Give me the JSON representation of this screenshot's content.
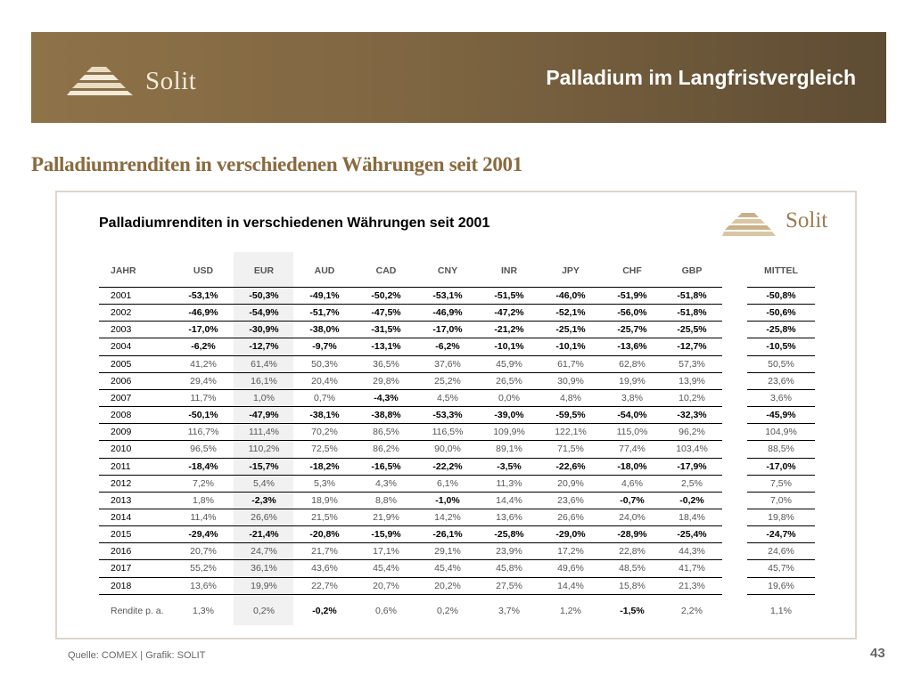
{
  "header": {
    "logo_text": "Solit",
    "title": "Palladium im Langfristvergleich"
  },
  "subtitle": "Palladiumrenditen in verschiedenen Währungen seit 2001",
  "table": {
    "title": "Palladiumrenditen in verschiedenen Währungen seit 2001",
    "logo_text": "Solit",
    "columns": [
      "JAHR",
      "USD",
      "EUR",
      "AUD",
      "CAD",
      "CNY",
      "INR",
      "JPY",
      "CHF",
      "GBP",
      "MITTEL"
    ],
    "rows": [
      [
        "2001",
        "-53,1%",
        "-50,3%",
        "-49,1%",
        "-50,2%",
        "-53,1%",
        "-51,5%",
        "-46,0%",
        "-51,9%",
        "-51,8%",
        "-50,8%"
      ],
      [
        "2002",
        "-46,9%",
        "-54,9%",
        "-51,7%",
        "-47,5%",
        "-46,9%",
        "-47,2%",
        "-52,1%",
        "-56,0%",
        "-51,8%",
        "-50,6%"
      ],
      [
        "2003",
        "-17,0%",
        "-30,9%",
        "-38,0%",
        "-31,5%",
        "-17,0%",
        "-21,2%",
        "-25,1%",
        "-25,7%",
        "-25,5%",
        "-25,8%"
      ],
      [
        "2004",
        "-6,2%",
        "-12,7%",
        "-9,7%",
        "-13,1%",
        "-6,2%",
        "-10,1%",
        "-10,1%",
        "-13,6%",
        "-12,7%",
        "-10,5%"
      ],
      [
        "2005",
        "41,2%",
        "61,4%",
        "50,3%",
        "36,5%",
        "37,6%",
        "45,9%",
        "61,7%",
        "62,8%",
        "57,3%",
        "50,5%"
      ],
      [
        "2006",
        "29,4%",
        "16,1%",
        "20,4%",
        "29,8%",
        "25,2%",
        "26,5%",
        "30,9%",
        "19,9%",
        "13,9%",
        "23,6%"
      ],
      [
        "2007",
        "11,7%",
        "1,0%",
        "0,7%",
        "-4,3%",
        "4,5%",
        "0,0%",
        "4,8%",
        "3,8%",
        "10,2%",
        "3,6%"
      ],
      [
        "2008",
        "-50,1%",
        "-47,9%",
        "-38,1%",
        "-38,8%",
        "-53,3%",
        "-39,0%",
        "-59,5%",
        "-54,0%",
        "-32,3%",
        "-45,9%"
      ],
      [
        "2009",
        "116,7%",
        "111,4%",
        "70,2%",
        "86,5%",
        "116,5%",
        "109,9%",
        "122,1%",
        "115,0%",
        "96,2%",
        "104,9%"
      ],
      [
        "2010",
        "96,5%",
        "110,2%",
        "72,5%",
        "86,2%",
        "90,0%",
        "89,1%",
        "71,5%",
        "77,4%",
        "103,4%",
        "88,5%"
      ],
      [
        "2011",
        "-18,4%",
        "-15,7%",
        "-18,2%",
        "-16,5%",
        "-22,2%",
        "-3,5%",
        "-22,6%",
        "-18,0%",
        "-17,9%",
        "-17,0%"
      ],
      [
        "2012",
        "7,2%",
        "5,4%",
        "5,3%",
        "4,3%",
        "6,1%",
        "11,3%",
        "20,9%",
        "4,6%",
        "2,5%",
        "7,5%"
      ],
      [
        "2013",
        "1,8%",
        "-2,3%",
        "18,9%",
        "8,8%",
        "-1,0%",
        "14,4%",
        "23,6%",
        "-0,7%",
        "-0,2%",
        "7,0%"
      ],
      [
        "2014",
        "11,4%",
        "26,6%",
        "21,5%",
        "21,9%",
        "14,2%",
        "13,6%",
        "26,6%",
        "24,0%",
        "18,4%",
        "19,8%"
      ],
      [
        "2015",
        "-29,4%",
        "-21,4%",
        "-20,8%",
        "-15,9%",
        "-26,1%",
        "-25,8%",
        "-29,0%",
        "-28,9%",
        "-25,4%",
        "-24,7%"
      ],
      [
        "2016",
        "20,7%",
        "24,7%",
        "21,7%",
        "17,1%",
        "29,1%",
        "23,9%",
        "17,2%",
        "22,8%",
        "44,3%",
        "24,6%"
      ],
      [
        "2017",
        "55,2%",
        "36,1%",
        "43,6%",
        "45,4%",
        "45,4%",
        "45,8%",
        "49,6%",
        "48,5%",
        "41,7%",
        "45,7%"
      ],
      [
        "2018",
        "13,6%",
        "19,9%",
        "22,7%",
        "20,7%",
        "20,2%",
        "27,5%",
        "14,4%",
        "15,8%",
        "21,3%",
        "19,6%"
      ]
    ],
    "summary_row": [
      "Rendite p. a.",
      "1,3%",
      "0,2%",
      "-0,2%",
      "0,6%",
      "0,2%",
      "3,7%",
      "1,2%",
      "-1,5%",
      "2,2%",
      "1,1%"
    ]
  },
  "footer": {
    "source": "Quelle: COMEX | Grafik: SOLIT",
    "page_number": "43"
  },
  "colors": {
    "header_gold": "#8e7248",
    "subtitle_gold": "#8a6a3e",
    "negative": "#000000",
    "positive": "#555555"
  }
}
